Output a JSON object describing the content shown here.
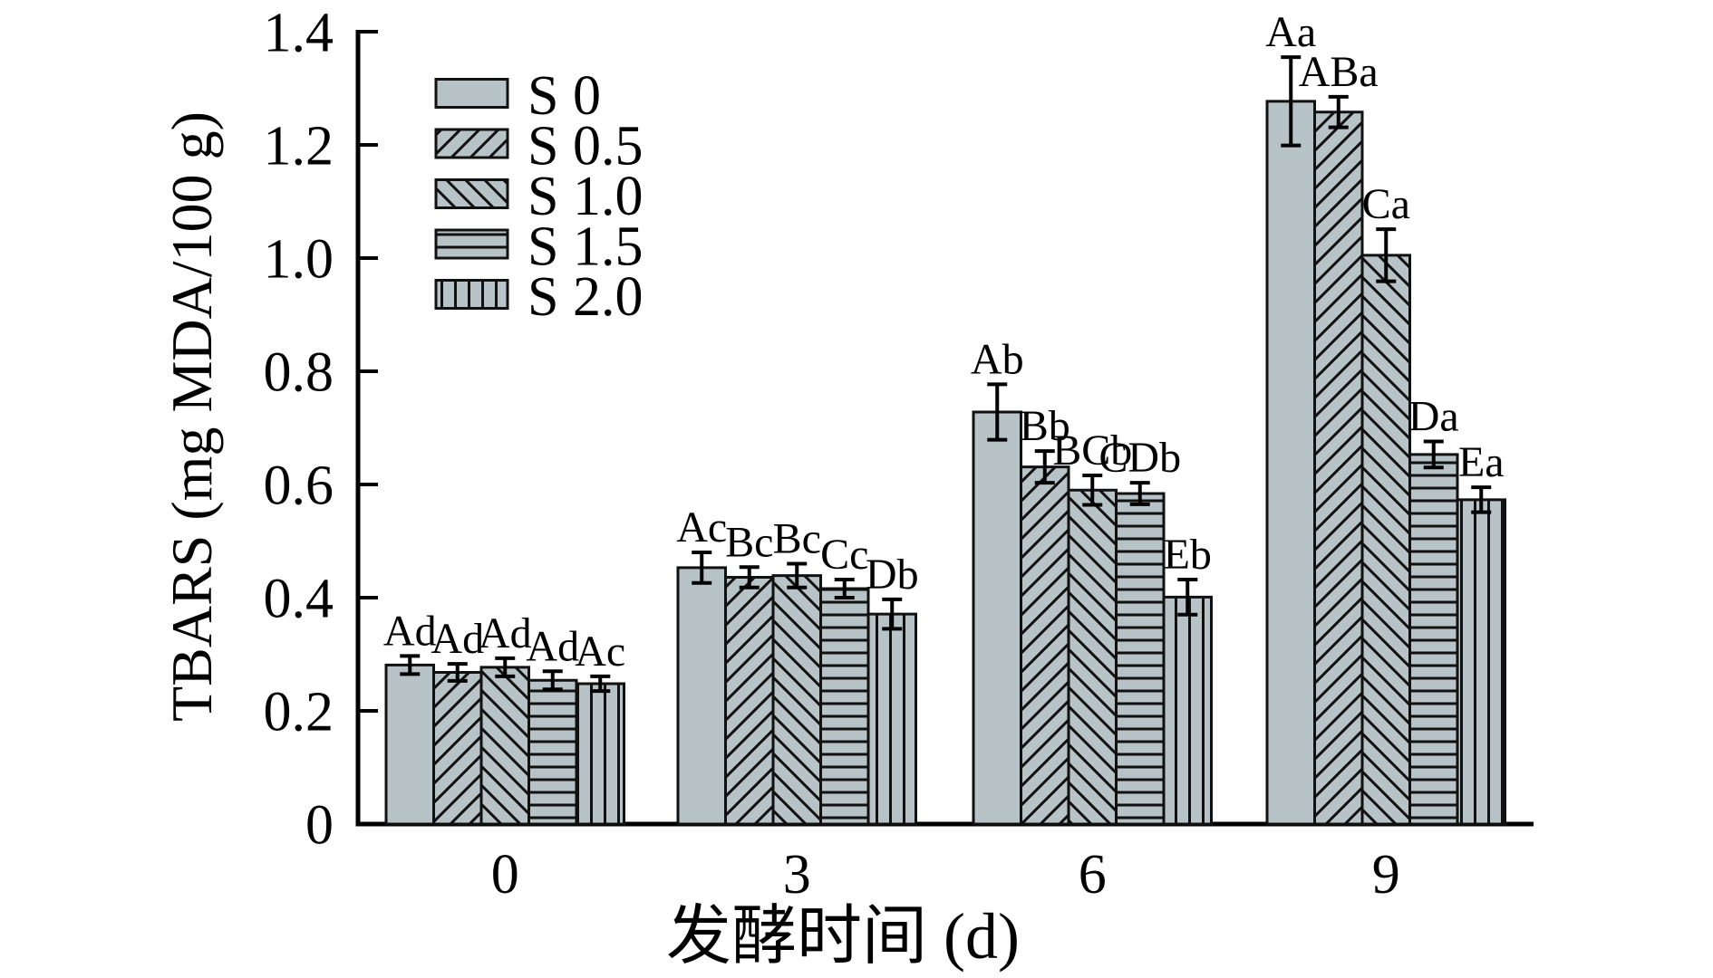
{
  "figure": {
    "background": "#ffffff"
  },
  "chart_data": {
    "type": "bar",
    "title": "",
    "xlabel": "发酵时间 (d)",
    "ylabel": "TBARS (mg MDA/100 g)",
    "categories": [
      "0",
      "3",
      "6",
      "9"
    ],
    "ylim": [
      0,
      1.4
    ],
    "ytick_labels": [
      "0",
      "0.2",
      "0.4",
      "0.6",
      "0.8",
      "1.0",
      "1.2",
      "1.4"
    ],
    "grid": false,
    "legend": {
      "position": "upper-left-inside",
      "items": [
        "S 0",
        "S 0.5",
        "S 1.0",
        "S 1.5",
        "S 2.0"
      ]
    },
    "colors": {
      "bar_fill": "#b7c3c7",
      "edge": "#111111",
      "text": "#000000"
    },
    "series": [
      {
        "name": "S 0",
        "hatch": "none",
        "values": [
          0.281,
          0.453,
          0.728,
          1.277
        ],
        "errors": [
          0.016,
          0.027,
          0.049,
          0.078
        ],
        "sig_labels": [
          "Ad",
          "Ac",
          "Ab",
          "Aa"
        ]
      },
      {
        "name": "S 0.5",
        "hatch": "diagonal-forward",
        "values": [
          0.268,
          0.436,
          0.631,
          1.258
        ],
        "errors": [
          0.015,
          0.018,
          0.028,
          0.027
        ],
        "sig_labels": [
          "Ad",
          "Bc",
          "Bb",
          "ABa"
        ]
      },
      {
        "name": "S 1.0",
        "hatch": "diagonal-back",
        "values": [
          0.277,
          0.439,
          0.59,
          1.005
        ],
        "errors": [
          0.016,
          0.021,
          0.026,
          0.046
        ],
        "sig_labels": [
          "Ad",
          "Bc",
          "BCb",
          "Ca"
        ]
      },
      {
        "name": "S 1.5",
        "hatch": "horizontal",
        "values": [
          0.254,
          0.416,
          0.584,
          0.653
        ],
        "errors": [
          0.016,
          0.016,
          0.019,
          0.023
        ],
        "sig_labels": [
          "Ad",
          "Cc",
          "CDb",
          "Da"
        ]
      },
      {
        "name": "S 2.0",
        "hatch": "vertical",
        "values": [
          0.248,
          0.371,
          0.401,
          0.573
        ],
        "errors": [
          0.013,
          0.026,
          0.031,
          0.022
        ],
        "sig_labels": [
          "Ac",
          "Db",
          "Eb",
          "Ea"
        ]
      }
    ]
  }
}
